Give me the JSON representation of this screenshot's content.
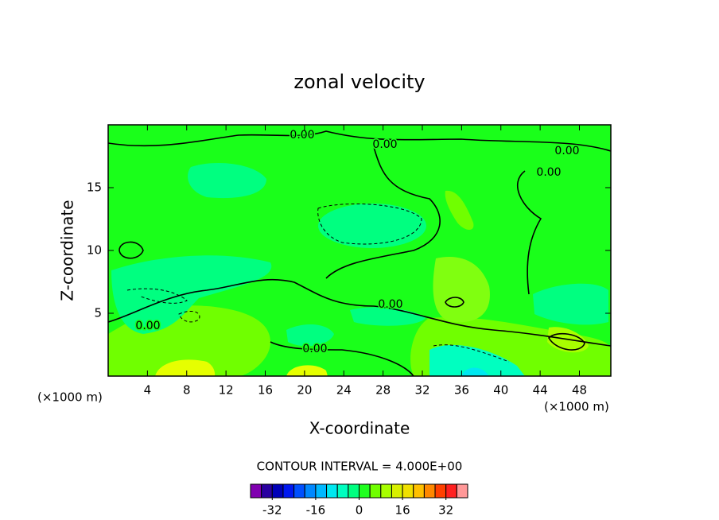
{
  "chart_data": {
    "type": "contour",
    "title": "zonal velocity",
    "x_label": "X-coordinate",
    "y_label": "Z-coordinate",
    "x_unit_label": "(×1000 m)",
    "y_unit_label": "(×1000 m)",
    "xlim": [
      0,
      51.2
    ],
    "xticks": [
      4,
      8,
      12,
      16,
      20,
      24,
      28,
      32,
      36,
      40,
      44,
      48
    ],
    "ylim": [
      0,
      20
    ],
    "yticks": [
      5,
      10,
      15
    ],
    "contour_labels": [
      "0.00",
      "0.00",
      "0.00",
      "0.00",
      "0.00",
      "0.00",
      "0.00"
    ],
    "contour_interval_text": "CONTOUR INTERVAL = 4.000E+00",
    "colorbar": {
      "levels": [
        -40,
        -36,
        -32,
        -28,
        -24,
        -20,
        -16,
        -12,
        -8,
        -4,
        0,
        4,
        8,
        12,
        16,
        20,
        24,
        28,
        32,
        36,
        40
      ],
      "colors": [
        "#8000b0",
        "#2a00a0",
        "#0000b8",
        "#0018f0",
        "#0050ff",
        "#0088ff",
        "#00b8ff",
        "#00e8f0",
        "#00ffc0",
        "#00ff80",
        "#20ff20",
        "#70ff00",
        "#a8ff00",
        "#d8f000",
        "#f0e000",
        "#ffc000",
        "#ff8800",
        "#ff4000",
        "#ff2020",
        "#ff9898"
      ],
      "ticks": [
        -32,
        -16,
        0,
        16,
        32
      ]
    }
  }
}
